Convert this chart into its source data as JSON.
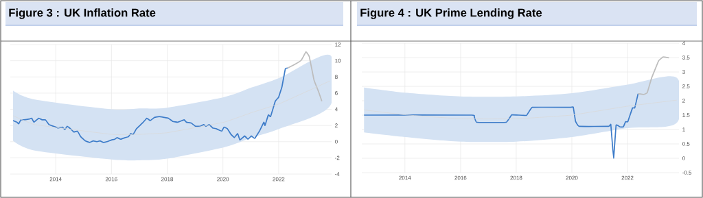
{
  "chart_data": [
    {
      "type": "line",
      "title": "Figure 3 : UK Inflation Rate",
      "grid": true,
      "xlim": [
        2012.37,
        2023.9
      ],
      "ylim": [
        -4,
        12
      ],
      "xticks": [
        2014,
        2016,
        2018,
        2020,
        2022
      ],
      "yticks": [
        -4,
        -2,
        0,
        2,
        4,
        6,
        8,
        10,
        12
      ],
      "series": [
        {
          "color": "#3d7cc9",
          "x": [
            2012.47,
            2012.61,
            2012.67,
            2012.75,
            2012.86,
            2013.06,
            2013.14,
            2013.22,
            2013.39,
            2013.51,
            2013.63,
            2013.76,
            2013.92,
            2014.08,
            2014.24,
            2014.33,
            2014.41,
            2014.53,
            2014.65,
            2014.78,
            2014.9,
            2015.06,
            2015.22,
            2015.35,
            2015.47,
            2015.59,
            2015.71,
            2015.84,
            2016.0,
            2016.12,
            2016.2,
            2016.33,
            2016.49,
            2016.61,
            2016.69,
            2016.78,
            2016.9,
            2017.02,
            2017.14,
            2017.27,
            2017.39,
            2017.55,
            2017.71,
            2017.88,
            2018.04,
            2018.2,
            2018.37,
            2018.53,
            2018.61,
            2018.69,
            2018.86,
            2019.02,
            2019.18,
            2019.31,
            2019.39,
            2019.51,
            2019.63,
            2019.76,
            2019.88,
            2019.96,
            2020.04,
            2020.16,
            2020.29,
            2020.41,
            2020.53,
            2020.61,
            2020.78,
            2020.9,
            2021.02,
            2021.14,
            2021.31,
            2021.47,
            2021.51,
            2021.63,
            2021.71,
            2021.88,
            2022.0,
            2022.12,
            2022.24,
            2022.33
          ],
          "values": [
            2.6,
            2.4,
            2.2,
            2.7,
            2.7,
            2.8,
            2.9,
            2.4,
            2.9,
            2.7,
            2.7,
            2.1,
            1.9,
            1.7,
            1.8,
            1.5,
            1.9,
            1.6,
            1.2,
            1.3,
            0.6,
            0.1,
            -0.1,
            0.1,
            0,
            0.1,
            -0.1,
            0,
            0.2,
            0.3,
            0.5,
            0.3,
            0.5,
            0.6,
            1.0,
            0.9,
            1.6,
            2.0,
            2.4,
            2.9,
            2.6,
            3.0,
            3.1,
            3.0,
            2.9,
            2.5,
            2.4,
            2.6,
            2.7,
            2.4,
            2.3,
            1.9,
            1.9,
            2.1,
            1.9,
            2.1,
            1.7,
            1.6,
            1.4,
            1.3,
            1.8,
            1.6,
            0.9,
            0.5,
            1.0,
            0.2,
            0.7,
            0.3,
            0.7,
            0.4,
            1.3,
            2.4,
            2.0,
            3.3,
            3.1,
            5.0,
            5.5,
            6.8,
            9.0,
            9.1
          ]
        },
        {
          "color": "#bdbdbd",
          "x": [
            2022.33,
            2022.61,
            2022.82,
            2022.98,
            2023.1,
            2023.27,
            2023.43,
            2023.55
          ],
          "values": [
            9.1,
            9.6,
            10.1,
            11.1,
            10.5,
            7.6,
            6.2,
            5.0
          ]
        },
        {
          "color": "#d9d9d9",
          "x": [
            2012.47,
            2013.25,
            2016.0,
            2017.0,
            2018.0,
            2020.04,
            2021.04,
            2022.04,
            2023.84
          ],
          "values": [
            3.2,
            2.1,
            0.9,
            0.9,
            1.1,
            2.4,
            3.6,
            4.7,
            7.5
          ],
          "lower": [
            0.1,
            -1.1,
            -2.2,
            -2.3,
            -2.1,
            -0.7,
            0.5,
            1.6,
            4.4
          ],
          "upper": [
            6.3,
            5.2,
            4.0,
            4.1,
            4.2,
            5.5,
            6.7,
            7.9,
            10.7
          ]
        }
      ]
    },
    {
      "type": "line",
      "title": "Figure 4 : UK Prime Lending Rate",
      "grid": true,
      "xlim": [
        2012.45,
        2023.85
      ],
      "ylim": [
        -0.5,
        4
      ],
      "xticks": [
        2014,
        2016,
        2018,
        2020,
        2022
      ],
      "yticks": [
        -0.5,
        0,
        0.5,
        1,
        1.5,
        2,
        2.5,
        3,
        3.5,
        4
      ],
      "series": [
        {
          "color": "#3d7cc9",
          "x": [
            2012.53,
            2016.41,
            2016.49,
            2016.58,
            2017.64,
            2017.84,
            2018.37,
            2018.58,
            2019.93,
            2020.05,
            2020.13,
            2020.26,
            2021.32,
            2021.4,
            2021.5,
            2021.59,
            2021.73,
            2021.85,
            2021.93,
            2022.01,
            2022.18,
            2022.26,
            2022.38
          ],
          "values": [
            1.5,
            1.5,
            1.45,
            1.25,
            1.25,
            1.51,
            1.49,
            1.77,
            1.77,
            1.78,
            1.29,
            1.11,
            1.11,
            1.17,
            0,
            1.15,
            1.09,
            1.09,
            1.27,
            1.27,
            1.75,
            1.75,
            2.24
          ]
        },
        {
          "color": "#bdbdbd",
          "x": [
            2022.38,
            2022.59,
            2022.71,
            2022.87,
            2023.12,
            2023.28,
            2023.49
          ],
          "values": [
            2.24,
            2.22,
            2.28,
            2.8,
            3.39,
            3.52,
            3.49
          ]
        },
        {
          "color": "#d9d9d9",
          "x": [
            2012.53,
            2014.0,
            2016.0,
            2018.0,
            2020.0,
            2022.0,
            2023.77
          ],
          "values": [
            1.68,
            1.51,
            1.37,
            1.37,
            1.5,
            1.81,
            2.02
          ],
          "lower": [
            0.9,
            0.74,
            0.58,
            0.58,
            0.74,
            1.05,
            1.23
          ],
          "upper": [
            2.46,
            2.28,
            2.15,
            2.15,
            2.26,
            2.56,
            2.8
          ]
        }
      ]
    }
  ]
}
